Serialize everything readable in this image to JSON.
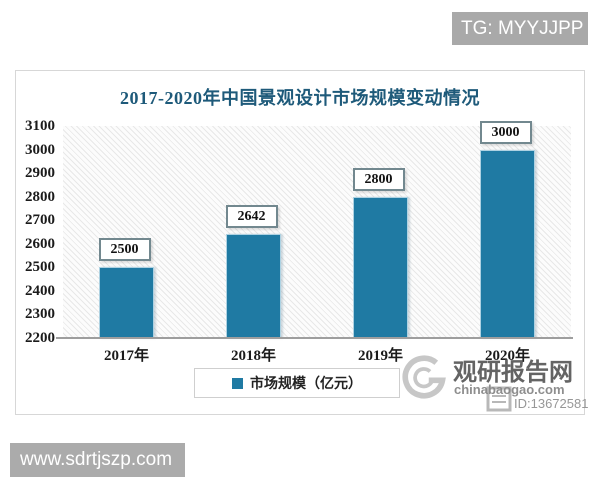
{
  "badges": {
    "telegram": "TG: MYYJJPP",
    "website": "www.sdrtjszp.com"
  },
  "chart_data": {
    "type": "bar",
    "title": "2017-2020年中国景观设计市场规模变动情况",
    "categories": [
      "2017年",
      "2018年",
      "2019年",
      "2020年"
    ],
    "values": [
      2500,
      2642,
      2800,
      3000
    ],
    "series_name": "市场规模（亿元）",
    "xlabel": "",
    "ylabel": "",
    "ylim": [
      2200,
      3100
    ],
    "yticks": [
      2200,
      2300,
      2400,
      2500,
      2600,
      2700,
      2800,
      2900,
      3000,
      3100
    ],
    "grid": false,
    "legend_position": "bottom",
    "data_labels": true,
    "bar_color": "#1f7aa3",
    "title_color": "#1e5a7a"
  },
  "watermark": {
    "name": "观研报告网",
    "domain": "chinabaogao.com",
    "id_text": "ID:13672581"
  }
}
